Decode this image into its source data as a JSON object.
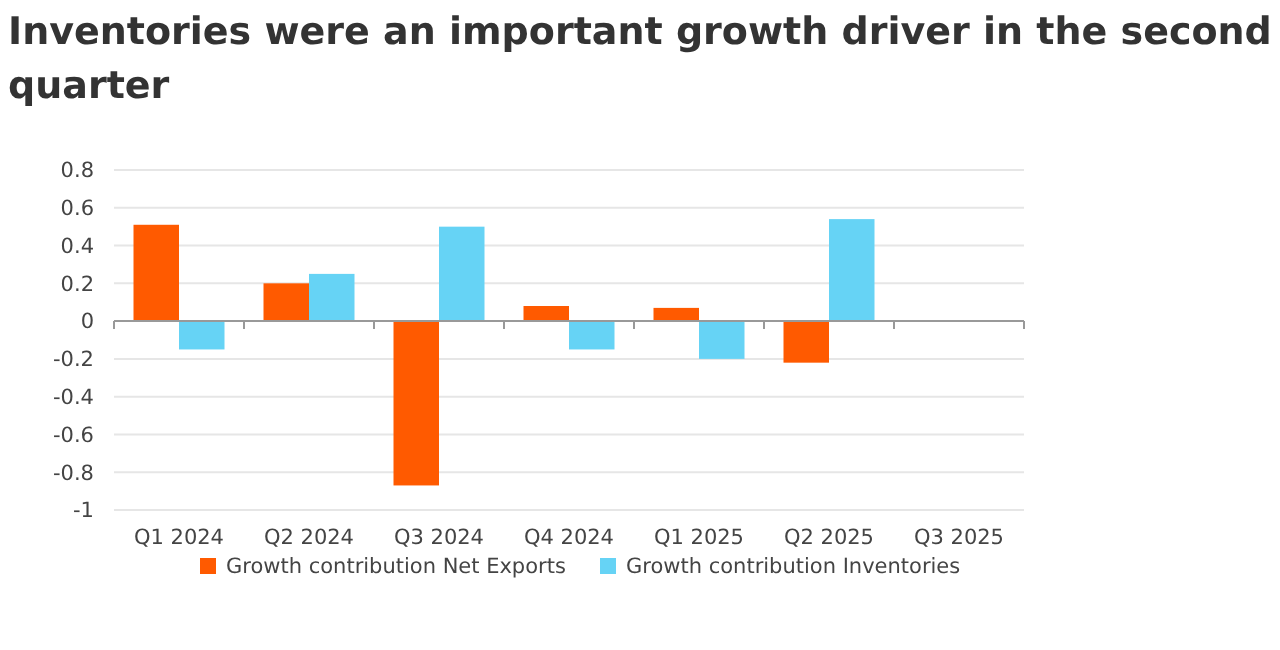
{
  "chart_data": {
    "type": "bar",
    "title": "Inventories were an important growth driver in the second quarter",
    "categories": [
      "Q1 2024",
      "Q2 2024",
      "Q3 2024",
      "Q4 2024",
      "Q1 2025",
      "Q2 2025",
      "Q3 2025"
    ],
    "series": [
      {
        "name": "Growth contribution Net Exports",
        "color": "#ff5a00",
        "values": [
          0.51,
          0.2,
          -0.87,
          0.08,
          0.07,
          -0.22,
          null
        ]
      },
      {
        "name": "Growth contribution Inventories",
        "color": "#66d3f5",
        "values": [
          -0.15,
          0.25,
          0.5,
          -0.15,
          -0.2,
          0.54,
          null
        ]
      }
    ],
    "ylim": [
      -1,
      0.8
    ],
    "yticks": [
      {
        "value": -1,
        "label": "-1"
      },
      {
        "value": -0.8,
        "label": "-0.8"
      },
      {
        "value": -0.6,
        "label": "-0.6"
      },
      {
        "value": -0.4,
        "label": "-0.4"
      },
      {
        "value": -0.2,
        "label": "-0.2"
      },
      0,
      0.2,
      0.4,
      0.6,
      0.8
    ],
    "grid": "y",
    "legend": "bottom"
  }
}
